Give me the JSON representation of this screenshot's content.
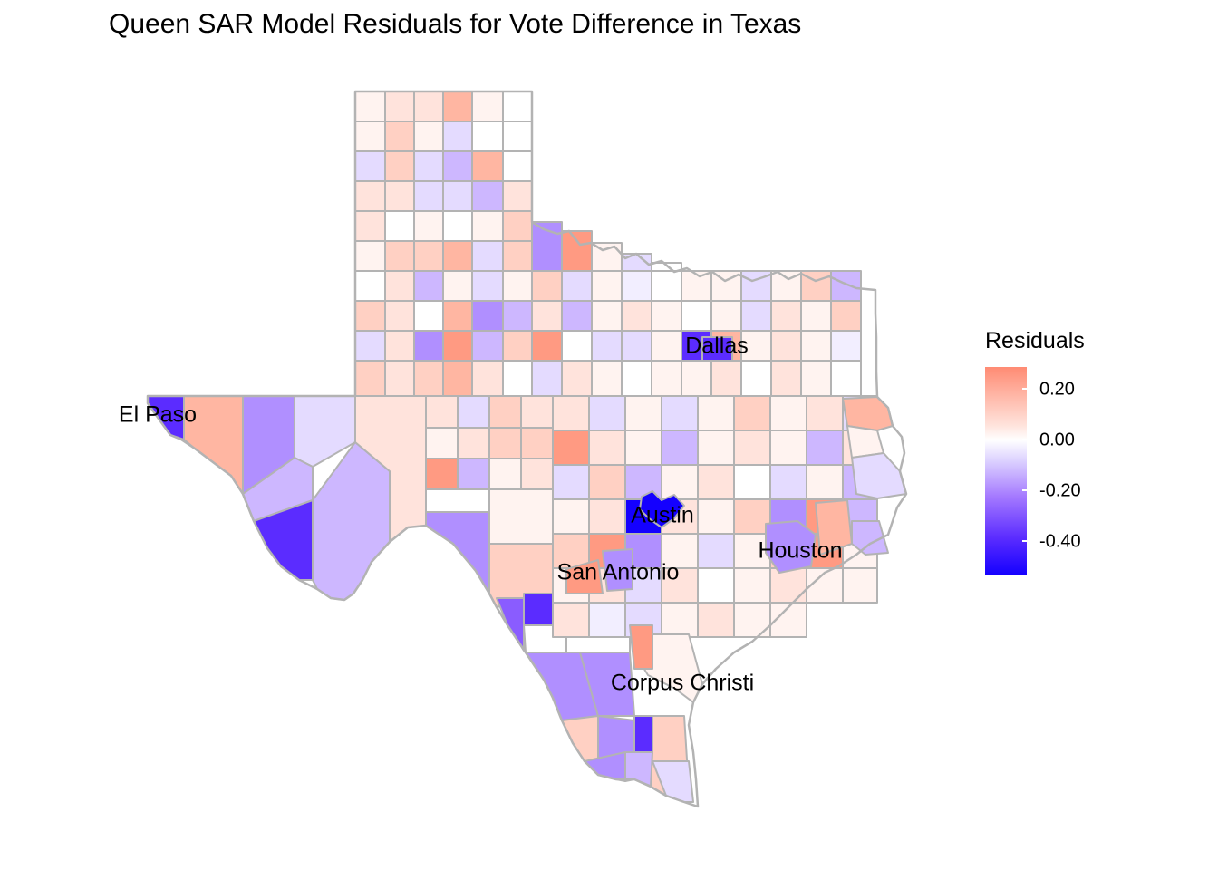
{
  "title": "Queen SAR Model Residuals for Vote Difference in Texas",
  "legend": {
    "title": "Residuals",
    "ticks": [
      "0.20",
      "0.00",
      "-0.20",
      "-0.40"
    ],
    "colors": {
      "high": "#ff8b73",
      "mid": "#ffffff",
      "low": "#1400ff"
    }
  },
  "cities": [
    "El Paso",
    "Dallas",
    "Austin",
    "Houston",
    "San Antonio",
    "Corpus Christi"
  ],
  "county_border_color": "#b3b3b3",
  "chart_data": {
    "type": "heatmap",
    "title": "Queen SAR Model Residuals for Vote Difference in Texas",
    "legend": "right",
    "color_scale": {
      "variable": "Residuals",
      "range_shown": [
        -0.5,
        0.3
      ],
      "low": "#1400ff",
      "mid": "#ffffff",
      "high": "#ff8b73"
    },
    "labels": [
      "El Paso",
      "Dallas",
      "Austin",
      "Houston",
      "San Antonio",
      "Corpus Christi"
    ]
  }
}
